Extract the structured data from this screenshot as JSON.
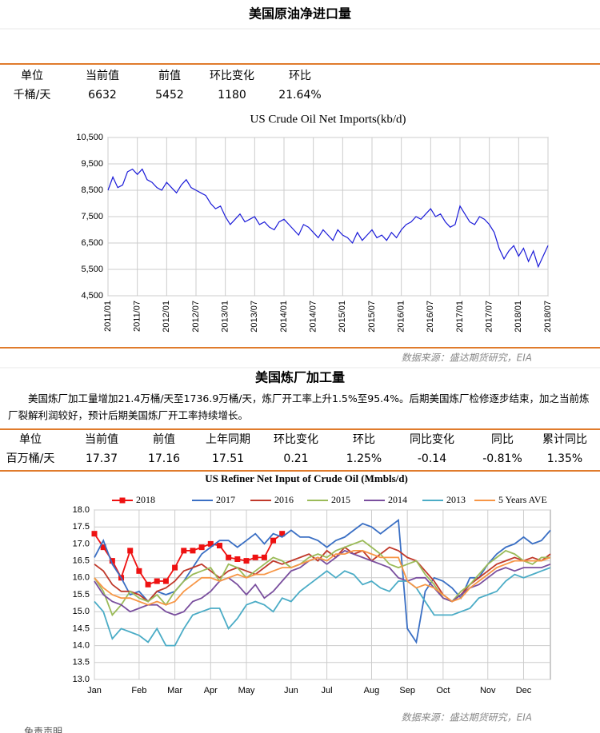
{
  "section1": {
    "title": "美国原油净进口量",
    "table": {
      "header": [
        "单位",
        "当前值",
        "前值",
        "环比变化",
        "环比"
      ],
      "row": [
        "千桶/天",
        "6632",
        "5452",
        "1180",
        "21.64%"
      ]
    },
    "source": "数据来源：盛达期货研究，EIA"
  },
  "section2": {
    "title": "美国炼厂加工量",
    "text": "美国炼厂加工量增加21.4万桶/天至1736.9万桶/天，炼厂开工率上升1.5%至95.4%。后期美国炼厂检修逐步结束，加之当前炼厂裂解利润较好，预计后期美国炼厂开工率持续增长。",
    "table": {
      "header": [
        "单位",
        "当前值",
        "前值",
        "上年同期",
        "环比变化",
        "环比",
        "同比变化",
        "同比",
        "累计同比"
      ],
      "row": [
        "百万桶/天",
        "17.37",
        "17.16",
        "17.51",
        "0.21",
        "1.25%",
        "-0.14",
        "-0.81%",
        "1.35%"
      ]
    },
    "source": "数据来源：盛达期货研究，EIA"
  },
  "footer": "免责声明",
  "chart_data": [
    {
      "type": "line",
      "title": "US Crude Oil Net Imports(kb/d)",
      "grid": true,
      "categories": [
        "2011/01",
        "2011/02",
        "2011/03",
        "2011/04",
        "2011/05",
        "2011/06",
        "2011/07",
        "2011/08",
        "2011/09",
        "2011/10",
        "2011/11",
        "2011/12",
        "2012/01",
        "2012/02",
        "2012/03",
        "2012/04",
        "2012/05",
        "2012/06",
        "2012/07",
        "2012/08",
        "2012/09",
        "2012/10",
        "2012/11",
        "2012/12",
        "2013/01",
        "2013/02",
        "2013/03",
        "2013/04",
        "2013/05",
        "2013/06",
        "2013/07",
        "2013/08",
        "2013/09",
        "2013/10",
        "2013/11",
        "2013/12",
        "2014/01",
        "2014/02",
        "2014/03",
        "2014/04",
        "2014/05",
        "2014/06",
        "2014/07",
        "2014/08",
        "2014/09",
        "2014/10",
        "2014/11",
        "2014/12",
        "2015/01",
        "2015/02",
        "2015/03",
        "2015/04",
        "2015/05",
        "2015/06",
        "2015/07",
        "2015/08",
        "2015/09",
        "2015/10",
        "2015/11",
        "2015/12",
        "2016/01",
        "2016/02",
        "2016/03",
        "2016/04",
        "2016/05",
        "2016/06",
        "2016/07",
        "2016/08",
        "2016/09",
        "2016/10",
        "2016/11",
        "2016/12",
        "2017/01",
        "2017/02",
        "2017/03",
        "2017/04",
        "2017/05",
        "2017/06",
        "2017/07",
        "2017/08",
        "2017/09",
        "2017/10",
        "2017/11",
        "2017/12",
        "2018/01",
        "2018/02",
        "2018/03",
        "2018/04",
        "2018/05",
        "2018/06",
        "2018/07"
      ],
      "xticks": [
        "2011/01",
        "2011/07",
        "2012/01",
        "2012/07",
        "2013/01",
        "2013/07",
        "2014/01",
        "2014/07",
        "2015/01",
        "2015/07",
        "2016/01",
        "2016/07",
        "2017/01",
        "2017/07",
        "2018/01",
        "2018/07"
      ],
      "series": [
        {
          "name": "US Crude Oil Net Imports",
          "color": "#1a1ad8",
          "values": [
            8500,
            9000,
            8600,
            8700,
            9200,
            9300,
            9100,
            9300,
            8900,
            8800,
            8600,
            8500,
            8800,
            8600,
            8400,
            8700,
            8900,
            8600,
            8500,
            8400,
            8300,
            8000,
            7800,
            7900,
            7500,
            7200,
            7400,
            7600,
            7300,
            7400,
            7500,
            7200,
            7300,
            7100,
            7000,
            7300,
            7400,
            7200,
            7000,
            6800,
            7200,
            7100,
            6900,
            6700,
            7000,
            6800,
            6600,
            7000,
            6800,
            6700,
            6500,
            6900,
            6600,
            6800,
            7000,
            6700,
            6800,
            6600,
            6900,
            6700,
            7000,
            7200,
            7300,
            7500,
            7400,
            7600,
            7800,
            7500,
            7600,
            7300,
            7100,
            7200,
            7900,
            7600,
            7300,
            7200,
            7500,
            7400,
            7200,
            6900,
            6300,
            5900,
            6200,
            6400,
            6000,
            6300,
            5800,
            6200,
            5600,
            6000,
            6400
          ]
        }
      ],
      "ylim": [
        4500,
        10500
      ],
      "yticks": [
        {
          "value": 4500,
          "label": "4,500"
        },
        {
          "value": 5500,
          "label": "5,500"
        },
        {
          "value": 6500,
          "label": "6,500"
        },
        {
          "value": 7500,
          "label": "7,500"
        },
        {
          "value": 8500,
          "label": "8,500"
        },
        {
          "value": 9500,
          "label": "9,500"
        },
        {
          "value": 10500,
          "label": "10,500"
        }
      ]
    },
    {
      "type": "line",
      "title": "US Refiner Net Input of Crude Oil (Mmbls/d)",
      "grid": true,
      "legend": "top",
      "categories": [
        "Jan",
        null,
        null,
        null,
        null,
        "Feb",
        null,
        null,
        null,
        "Mar",
        null,
        null,
        null,
        "Apr",
        null,
        null,
        null,
        "May",
        null,
        null,
        null,
        null,
        "Jun",
        null,
        null,
        null,
        "Jul",
        null,
        null,
        null,
        null,
        "Aug",
        null,
        null,
        null,
        "Sep",
        null,
        null,
        null,
        "Oct",
        null,
        null,
        null,
        null,
        "Nov",
        null,
        null,
        null,
        "Dec",
        null,
        null,
        null
      ],
      "series": [
        {
          "name": "2018",
          "color": "#ee1111",
          "markers": true,
          "values": [
            17.3,
            16.9,
            16.5,
            16.0,
            16.8,
            16.2,
            15.8,
            15.9,
            15.9,
            16.3,
            16.8,
            16.8,
            16.9,
            17.0,
            16.95,
            16.6,
            16.55,
            16.5,
            16.6,
            16.6,
            17.1,
            17.3,
            null,
            null,
            null,
            null,
            null,
            null,
            null,
            null,
            null,
            null,
            null,
            null,
            null,
            null,
            null,
            null,
            null,
            null,
            null,
            null,
            null,
            null,
            null,
            null,
            null,
            null,
            null,
            null,
            null,
            null
          ]
        },
        {
          "name": "2017",
          "color": "#3a6fc4",
          "values": [
            16.6,
            17.1,
            16.4,
            16.0,
            15.5,
            15.6,
            15.3,
            15.6,
            15.5,
            15.6,
            15.9,
            16.3,
            16.7,
            16.9,
            17.1,
            17.1,
            16.9,
            17.1,
            17.3,
            17.0,
            17.3,
            17.2,
            17.4,
            17.2,
            17.2,
            17.1,
            16.9,
            17.1,
            17.2,
            17.4,
            17.6,
            17.5,
            17.3,
            17.5,
            17.7,
            14.5,
            14.1,
            15.6,
            16.0,
            15.9,
            15.7,
            15.4,
            16.0,
            16.0,
            16.4,
            16.7,
            16.9,
            17.0,
            17.2,
            17.0,
            17.1,
            17.4
          ]
        },
        {
          "name": "2016",
          "color": "#c0392b",
          "values": [
            16.4,
            16.2,
            15.8,
            15.6,
            15.6,
            15.5,
            15.3,
            15.6,
            15.7,
            15.9,
            16.2,
            16.3,
            16.4,
            16.2,
            16.0,
            16.2,
            16.3,
            16.2,
            16.1,
            16.3,
            16.5,
            16.4,
            16.5,
            16.6,
            16.7,
            16.5,
            16.8,
            16.6,
            16.9,
            16.7,
            16.8,
            16.5,
            16.7,
            16.9,
            16.8,
            16.6,
            16.5,
            16.2,
            15.9,
            15.5,
            15.3,
            15.5,
            15.8,
            16.0,
            16.2,
            16.4,
            16.5,
            16.6,
            16.5,
            16.6,
            16.5,
            16.7
          ]
        },
        {
          "name": "2015",
          "color": "#9bbb59",
          "values": [
            16.0,
            15.6,
            14.9,
            15.2,
            15.6,
            15.4,
            15.3,
            15.5,
            15.2,
            15.6,
            15.9,
            16.1,
            16.2,
            16.3,
            15.9,
            16.4,
            16.3,
            16.0,
            16.2,
            16.4,
            16.6,
            16.5,
            16.3,
            16.4,
            16.6,
            16.7,
            16.6,
            16.8,
            16.9,
            17.0,
            17.1,
            16.9,
            16.7,
            16.4,
            16.3,
            16.4,
            16.5,
            16.1,
            15.8,
            15.4,
            15.3,
            15.6,
            15.8,
            16.1,
            16.4,
            16.6,
            16.8,
            16.7,
            16.5,
            16.4,
            16.6,
            16.6
          ]
        },
        {
          "name": "2014",
          "color": "#7a4f9e",
          "values": [
            15.9,
            15.5,
            15.3,
            15.2,
            15.0,
            15.1,
            15.2,
            15.2,
            15.0,
            14.9,
            15.0,
            15.3,
            15.4,
            15.6,
            15.9,
            16.0,
            15.8,
            15.5,
            15.8,
            15.4,
            15.6,
            15.9,
            16.2,
            16.3,
            16.5,
            16.6,
            16.4,
            16.6,
            16.8,
            16.7,
            16.6,
            16.5,
            16.4,
            16.3,
            16.0,
            15.9,
            16.0,
            16.0,
            15.7,
            15.4,
            15.3,
            15.5,
            15.7,
            15.8,
            16.0,
            16.2,
            16.3,
            16.2,
            16.3,
            16.3,
            16.3,
            16.4
          ]
        },
        {
          "name": "2013",
          "color": "#4bacc6",
          "values": [
            15.3,
            15.0,
            14.2,
            14.5,
            14.4,
            14.3,
            14.1,
            14.5,
            14.0,
            14.0,
            14.5,
            14.9,
            15.0,
            15.1,
            15.1,
            14.5,
            14.8,
            15.2,
            15.3,
            15.2,
            15.0,
            15.4,
            15.3,
            15.6,
            15.8,
            16.0,
            16.2,
            16.0,
            16.2,
            16.1,
            15.8,
            15.9,
            15.7,
            15.6,
            15.9,
            15.9,
            15.7,
            15.3,
            14.9,
            14.9,
            14.9,
            15.0,
            15.1,
            15.4,
            15.5,
            15.6,
            15.9,
            16.1,
            16.0,
            16.1,
            16.2,
            16.3
          ]
        },
        {
          "name": "5 Years AVE",
          "color": "#f79646",
          "values": [
            16.0,
            15.7,
            15.5,
            15.4,
            15.4,
            15.3,
            15.2,
            15.3,
            15.2,
            15.3,
            15.6,
            15.8,
            16.0,
            16.0,
            15.9,
            16.0,
            16.1,
            16.0,
            16.1,
            16.1,
            16.2,
            16.3,
            16.3,
            16.4,
            16.5,
            16.6,
            16.5,
            16.7,
            16.7,
            16.8,
            16.8,
            16.7,
            16.6,
            16.6,
            16.6,
            15.9,
            15.7,
            15.8,
            15.7,
            15.5,
            15.3,
            15.4,
            15.7,
            15.9,
            16.1,
            16.3,
            16.4,
            16.5,
            16.5,
            16.5,
            16.5,
            16.6
          ]
        }
      ],
      "ylim": [
        13,
        18
      ],
      "yticks": [
        {
          "value": 13,
          "label": "13.0"
        },
        {
          "value": 13.5,
          "label": "13.5"
        },
        {
          "value": 14,
          "label": "14.0"
        },
        {
          "value": 14.5,
          "label": "14.5"
        },
        {
          "value": 15,
          "label": "15.0"
        },
        {
          "value": 15.5,
          "label": "15.5"
        },
        {
          "value": 16,
          "label": "16.0"
        },
        {
          "value": 16.5,
          "label": "16.5"
        },
        {
          "value": 17,
          "label": "17.0"
        },
        {
          "value": 17.5,
          "label": "17.5"
        },
        {
          "value": 18,
          "label": "18.0"
        }
      ]
    }
  ]
}
